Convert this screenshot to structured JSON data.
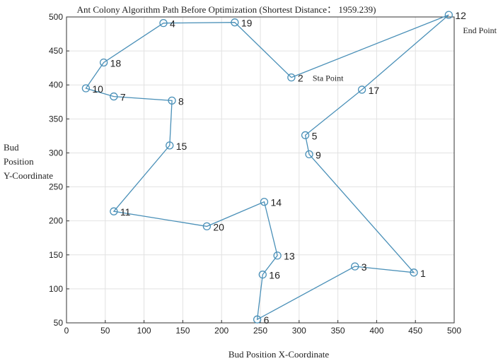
{
  "chart_data": {
    "type": "line",
    "title": "Ant Colony Algorithm Path Before Optimization (Shortest Distance： 1959.239)",
    "xlabel": "Bud Position X-Coordinate",
    "ylabel_lines": [
      "Bud",
      "Position",
      "Y-Coordinate"
    ],
    "xlim": [
      0,
      500
    ],
    "ylim": [
      50,
      500
    ],
    "xticks": [
      0,
      50,
      100,
      150,
      200,
      250,
      300,
      350,
      400,
      450,
      500
    ],
    "yticks": [
      50,
      100,
      150,
      200,
      250,
      300,
      350,
      400,
      450,
      500
    ],
    "grid": true,
    "line_color": "#4a90b8",
    "marker": "circle-open",
    "points": [
      {
        "id": "1",
        "x": 448,
        "y": 124
      },
      {
        "id": "2",
        "x": 290,
        "y": 411
      },
      {
        "id": "3",
        "x": 372,
        "y": 133
      },
      {
        "id": "4",
        "x": 125,
        "y": 491
      },
      {
        "id": "5",
        "x": 308,
        "y": 326
      },
      {
        "id": "6",
        "x": 246,
        "y": 55
      },
      {
        "id": "7",
        "x": 61,
        "y": 383
      },
      {
        "id": "8",
        "x": 136,
        "y": 377
      },
      {
        "id": "9",
        "x": 313,
        "y": 298
      },
      {
        "id": "10",
        "x": 25,
        "y": 395
      },
      {
        "id": "11",
        "x": 61,
        "y": 214
      },
      {
        "id": "12",
        "x": 493,
        "y": 503
      },
      {
        "id": "13",
        "x": 272,
        "y": 149
      },
      {
        "id": "14",
        "x": 255,
        "y": 228
      },
      {
        "id": "15",
        "x": 133,
        "y": 311
      },
      {
        "id": "16",
        "x": 253,
        "y": 121
      },
      {
        "id": "17",
        "x": 381,
        "y": 393
      },
      {
        "id": "18",
        "x": 48,
        "y": 433
      },
      {
        "id": "19",
        "x": 217,
        "y": 492
      },
      {
        "id": "20",
        "x": 181,
        "y": 192
      }
    ],
    "path": [
      "2",
      "19",
      "4",
      "18",
      "10",
      "7",
      "8",
      "15",
      "11",
      "20",
      "14",
      "13",
      "16",
      "6",
      "3",
      "1",
      "9",
      "5",
      "17",
      "12",
      "2"
    ],
    "annotations": [
      {
        "point": "2",
        "text": "Sta Point"
      },
      {
        "point": "12",
        "text": "End Point"
      }
    ]
  }
}
